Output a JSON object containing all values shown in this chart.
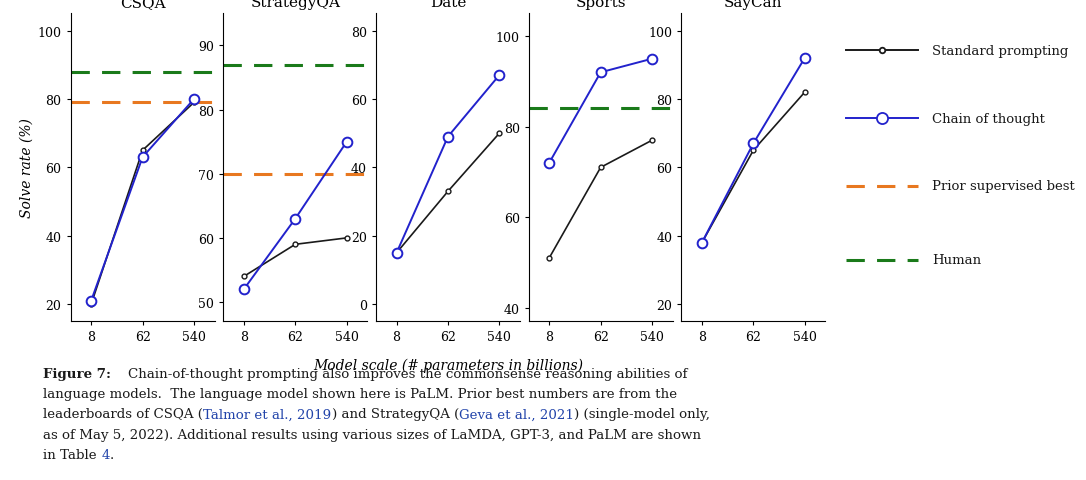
{
  "subplots": [
    {
      "title": "CSQA",
      "standard": [
        20,
        65,
        79
      ],
      "chain": [
        21,
        63,
        80
      ],
      "prior_best": 79,
      "human": 88,
      "ylim": [
        15,
        105
      ],
      "yticks": [
        20,
        40,
        60,
        80,
        100
      ],
      "show_ylabel": true
    },
    {
      "title": "StrategyQA",
      "standard": [
        54,
        59,
        60
      ],
      "chain": [
        52,
        63,
        75
      ],
      "prior_best": 70,
      "human": 87,
      "ylim": [
        47,
        95
      ],
      "yticks": [
        50,
        60,
        70,
        80,
        90
      ],
      "show_ylabel": false
    },
    {
      "title": "Date",
      "standard": [
        15,
        33,
        50
      ],
      "chain": [
        15,
        49,
        67
      ],
      "prior_best": null,
      "human": null,
      "ylim": [
        -5,
        85
      ],
      "yticks": [
        0,
        20,
        40,
        60,
        80
      ],
      "show_ylabel": false
    },
    {
      "title": "Sports",
      "standard": [
        51,
        71,
        77
      ],
      "chain": [
        72,
        92,
        95
      ],
      "prior_best": null,
      "human": 84,
      "ylim": [
        37,
        105
      ],
      "yticks": [
        40,
        60,
        80,
        100
      ],
      "show_ylabel": false
    },
    {
      "title": "SayCan",
      "standard": [
        38,
        65,
        82
      ],
      "chain": [
        38,
        67,
        92
      ],
      "prior_best": null,
      "human": null,
      "ylim": [
        15,
        105
      ],
      "yticks": [
        20,
        40,
        60,
        80,
        100
      ],
      "show_ylabel": false
    }
  ],
  "x_labels": [
    "8",
    "62",
    "540"
  ],
  "xlabel": "Model scale (# parameters in billions)",
  "ylabel": "Solve rate (%)",
  "standard_color": "#1a1a1a",
  "chain_color": "#2222cc",
  "prior_color": "#e87820",
  "human_color": "#1a7a1a",
  "legend_items": [
    {
      "label": "Standard prompting",
      "style": "solid",
      "color": "#1a1a1a",
      "marker": true,
      "msize": 4
    },
    {
      "label": "Chain of thought",
      "style": "solid",
      "color": "#2222cc",
      "marker": true,
      "msize": 8
    },
    {
      "label": "Prior supervised best",
      "style": "dashed",
      "color": "#e87820",
      "marker": false,
      "msize": 0
    },
    {
      "label": "Human",
      "style": "dashed",
      "color": "#1a7a1a",
      "marker": false,
      "msize": 0
    }
  ],
  "caption_bold": "Figure 7:",
  "caption_rest": "    Chain-of-thought prompting also improves the commonsense reasoning abilities of language models.  The language model shown here is PaLM. Prior best numbers are from the leaderboards of CSQA (Talmor et al., 2019) and StrategyQA (Geva et al., 2021) (single-model only, as of May 5, 2022). Additional results using various sizes of LaMDA, GPT-3, and PaLM are shown in Table 4.",
  "text_color": "#1a1a1a",
  "link_color": "#2244aa"
}
